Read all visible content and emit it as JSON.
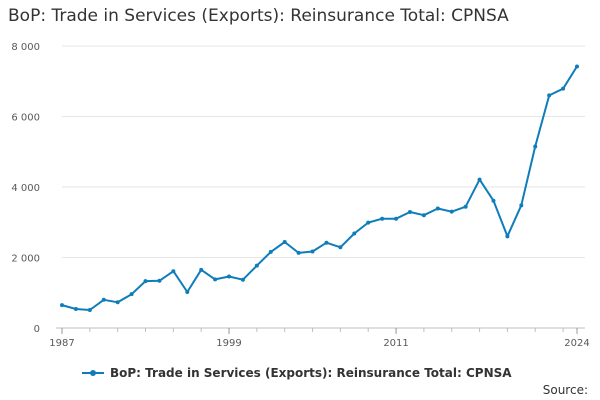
{
  "chart_data": {
    "type": "line",
    "title": "BoP: Trade in Services (Exports): Reinsurance Total: CPNSA",
    "xlabel": "",
    "ylabel": "",
    "x_tick_labels": [
      "1987",
      "1999",
      "2011",
      "2024"
    ],
    "y_tick_labels": [
      "0",
      "2 000",
      "4 000",
      "6 000",
      "8 000"
    ],
    "x_ticks": [
      1987,
      1999,
      2011,
      2024
    ],
    "y_ticks": [
      0,
      2000,
      4000,
      6000,
      8000
    ],
    "xlim": [
      1987,
      2024
    ],
    "ylim": [
      0,
      8000
    ],
    "grid": "horizontal",
    "legend_position": "bottom",
    "series": [
      {
        "name": "BoP: Trade in Services (Exports): Reinsurance Total: CPNSA",
        "color": "#0f7dba",
        "x": [
          1987,
          1988,
          1989,
          1990,
          1991,
          1992,
          1993,
          1994,
          1995,
          1996,
          1997,
          1998,
          1999,
          2000,
          2001,
          2002,
          2003,
          2004,
          2005,
          2006,
          2007,
          2008,
          2009,
          2010,
          2011,
          2012,
          2013,
          2014,
          2015,
          2016,
          2017,
          2018,
          2019,
          2020,
          2021,
          2022,
          2023,
          2024
        ],
        "values": [
          650,
          540,
          510,
          800,
          730,
          960,
          1330,
          1340,
          1610,
          1020,
          1650,
          1380,
          1460,
          1370,
          1770,
          2160,
          2440,
          2130,
          2170,
          2420,
          2290,
          2680,
          2990,
          3100,
          3100,
          3290,
          3200,
          3390,
          3300,
          3440,
          4210,
          3610,
          2600,
          3480,
          5150,
          6600,
          6790,
          7420
        ]
      }
    ]
  },
  "legend": {
    "label": "BoP: Trade in Services (Exports): Reinsurance Total: CPNSA"
  },
  "footer": {
    "source_label": "Source:"
  }
}
